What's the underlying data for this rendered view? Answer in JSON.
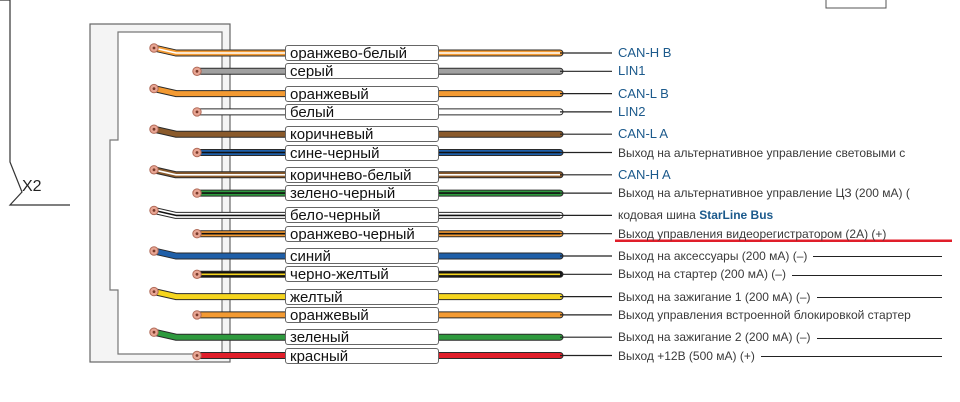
{
  "connector": {
    "label": "X2"
  },
  "wires": [
    {
      "name": "оранжево-белый",
      "color": "#f39a32",
      "stripe": "#ffffff",
      "func": "CAN-H B",
      "kind": "code",
      "pin": "top"
    },
    {
      "name": "серый",
      "color": "#a0a0a0",
      "stripe": "",
      "func": "LIN1",
      "kind": "code",
      "pin": "bottom"
    },
    {
      "name": "оранжевый",
      "color": "#f39a32",
      "stripe": "",
      "func": "CAN-L B",
      "kind": "code",
      "pin": "top"
    },
    {
      "name": "белый",
      "color": "#ffffff",
      "stripe": "",
      "func": "LIN2",
      "kind": "code",
      "pin": "bottom"
    },
    {
      "name": "коричневый",
      "color": "#8a5a2b",
      "stripe": "",
      "func": "CAN-L A",
      "kind": "code",
      "pin": "top"
    },
    {
      "name": "сине-черный",
      "color": "#1f5fa8",
      "stripe": "#111111",
      "func": "Выход на альтернативное управление световыми с",
      "kind": "desc",
      "pin": "bottom"
    },
    {
      "name": "коричнево-белый",
      "color": "#8a5a2b",
      "stripe": "#ffffff",
      "func": "CAN-H A",
      "kind": "code",
      "pin": "top"
    },
    {
      "name": "зелено-черный",
      "color": "#2e9a3e",
      "stripe": "#111111",
      "func": "Выход на альтернативное управление ЦЗ (200 мА) (",
      "kind": "desc",
      "pin": "bottom"
    },
    {
      "name": "бело-черный",
      "color": "#ffffff",
      "stripe": "#111111",
      "func": "кодовая шина ",
      "func2": "StarLine Bus",
      "kind": "brand",
      "pin": "top"
    },
    {
      "name": "оранжево-черный",
      "color": "#f39a32",
      "stripe": "#111111",
      "func": "Выход управления видеорегистратором (2А) (+)",
      "kind": "desc",
      "pin": "bottom",
      "highlight": "#e01e2a"
    },
    {
      "name": "синий",
      "color": "#1f5fa8",
      "stripe": "",
      "func": "Выход на аксессуары (200 мА) (–)",
      "kind": "desc",
      "pin": "top",
      "tail": true
    },
    {
      "name": "черно-желтый",
      "color": "#111111",
      "stripe": "#f5d51e",
      "func": "Выход на стартер (200 мА) (–)",
      "kind": "desc",
      "pin": "bottom",
      "tail": true
    },
    {
      "name": "желтый",
      "color": "#f5d51e",
      "stripe": "",
      "func": "Выход на зажигание 1 (200 мА) (–)",
      "kind": "desc",
      "pin": "top",
      "tail": true
    },
    {
      "name": "оранжевый",
      "color": "#f39a32",
      "stripe": "",
      "func": "Выход управления встроенной блокировкой стартер",
      "kind": "desc",
      "pin": "bottom"
    },
    {
      "name": "зеленый",
      "color": "#2e9a3e",
      "stripe": "",
      "func": "Выход на зажигание 2 (200 мА) (–)",
      "kind": "desc",
      "pin": "top",
      "tail": true
    },
    {
      "name": "красный",
      "color": "#e01e2a",
      "stripe": "",
      "func": "Выход +12В (500 мА) (+)",
      "kind": "desc",
      "pin": "bottom",
      "tail": true
    }
  ]
}
